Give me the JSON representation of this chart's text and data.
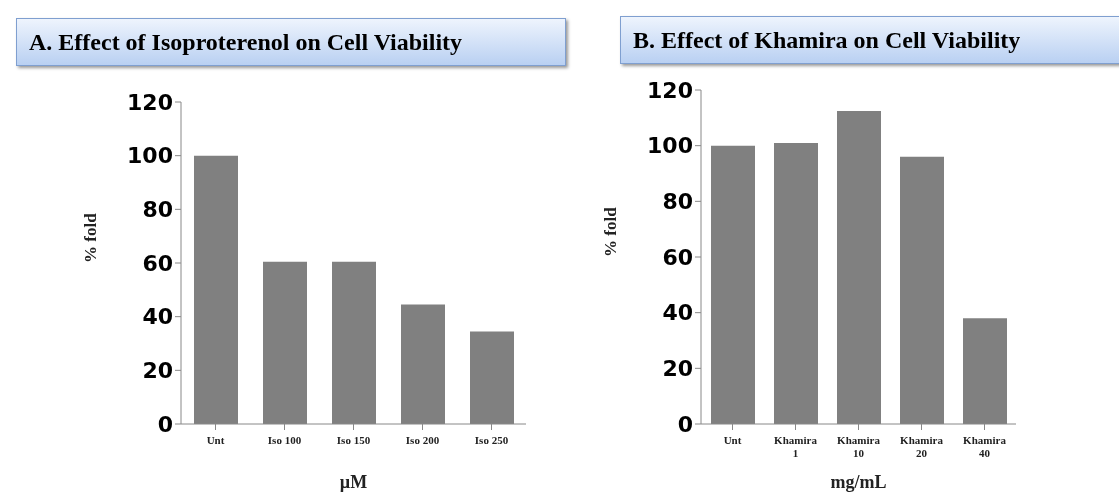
{
  "chart_data": [
    {
      "type": "bar",
      "title": "A. Effect of Isoproterenol on Cell Viability",
      "xlabel": "µM",
      "ylabel": "% fold",
      "categories": [
        "Unt",
        "Iso 100",
        "Iso 150",
        "Iso 200",
        "Iso 250"
      ],
      "values": [
        100,
        60.5,
        60.5,
        44.5,
        34.5
      ],
      "color": "#808080",
      "ylim": [
        0,
        120
      ],
      "yticks": [
        0,
        20,
        40,
        60,
        80,
        100,
        120
      ],
      "grid": false,
      "legend": false
    },
    {
      "type": "bar",
      "title": "B. Effect of Khamira on Cell Viability",
      "xlabel": "mg/mL",
      "ylabel": "% fold",
      "categories": [
        "Unt",
        "Khamira\n1",
        "Khamira\n10",
        "Khamira\n20",
        "Khamira\n40"
      ],
      "values": [
        100,
        101,
        112.5,
        96,
        38
      ],
      "color": "#808080",
      "ylim": [
        0,
        120
      ],
      "yticks": [
        0,
        20,
        40,
        60,
        80,
        100,
        120
      ],
      "grid": false,
      "legend": false
    }
  ]
}
